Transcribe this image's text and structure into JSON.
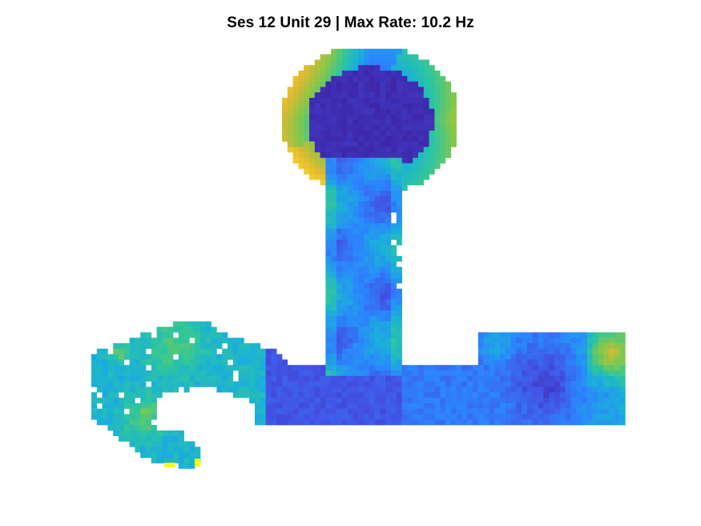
{
  "chart_data": {
    "type": "heatmap",
    "title": "Ses 12 Unit 29 | Max Rate: 10.2 Hz",
    "xlabel": "",
    "ylabel": "",
    "axes_visible": false,
    "grid": false,
    "colormap": "parula",
    "colormap_stops": [
      "#3e26a8",
      "#4253e6",
      "#2b86fd",
      "#1ab0d9",
      "#2ec69d",
      "#83c84b",
      "#d9b932",
      "#fcd226",
      "#f9fb15"
    ],
    "empty_bins_color": "#ffffff",
    "value_unit": "Hz",
    "max_rate": 10.2,
    "shape": "maze occupancy: square loop top, vertical stem, horizontal arm with curved left end"
  }
}
